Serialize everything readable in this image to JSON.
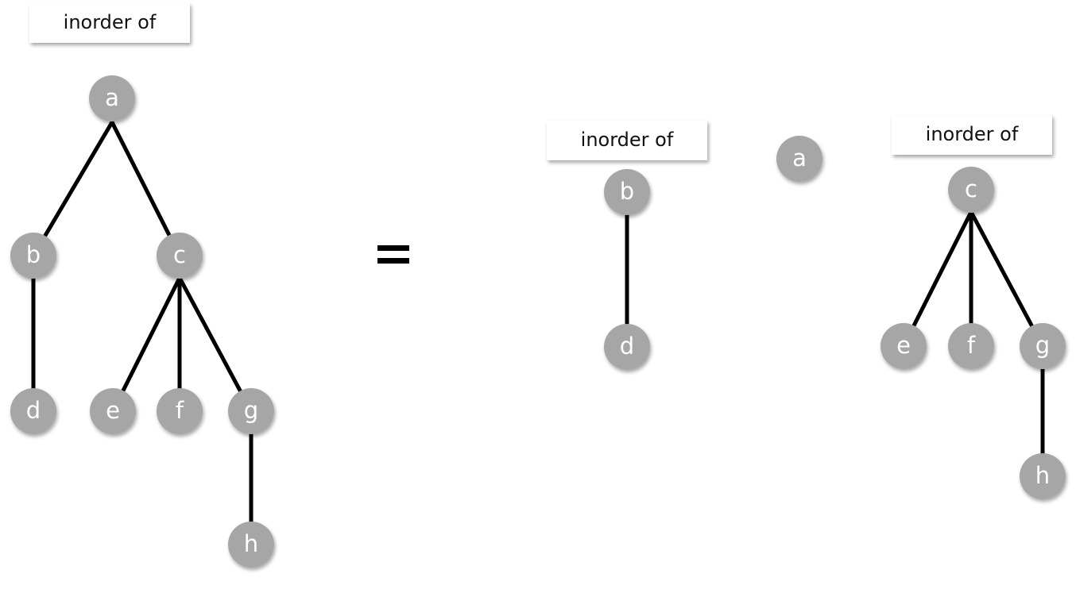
{
  "labels": {
    "main": "inorder of",
    "left_subtree": "inorder of",
    "right_subtree": "inorder of"
  },
  "operator": "=",
  "main_tree": {
    "nodes": {
      "a": "a",
      "b": "b",
      "c": "c",
      "d": "d",
      "e": "e",
      "f": "f",
      "g": "g",
      "h": "h"
    },
    "edges": [
      [
        "a",
        "b"
      ],
      [
        "a",
        "c"
      ],
      [
        "b",
        "d"
      ],
      [
        "c",
        "e"
      ],
      [
        "c",
        "f"
      ],
      [
        "c",
        "g"
      ],
      [
        "g",
        "h"
      ]
    ]
  },
  "left_subtree": {
    "nodes": {
      "b": "b",
      "d": "d"
    },
    "edges": [
      [
        "b",
        "d"
      ]
    ]
  },
  "root": {
    "a": "a"
  },
  "right_subtree": {
    "nodes": {
      "c": "c",
      "e": "e",
      "f": "f",
      "g": "g",
      "h": "h"
    },
    "edges": [
      [
        "c",
        "e"
      ],
      [
        "c",
        "f"
      ],
      [
        "c",
        "g"
      ],
      [
        "g",
        "h"
      ]
    ]
  },
  "colors": {
    "node_fill": "#a6a6a6",
    "node_text": "#ffffff",
    "edge": "#000000"
  }
}
